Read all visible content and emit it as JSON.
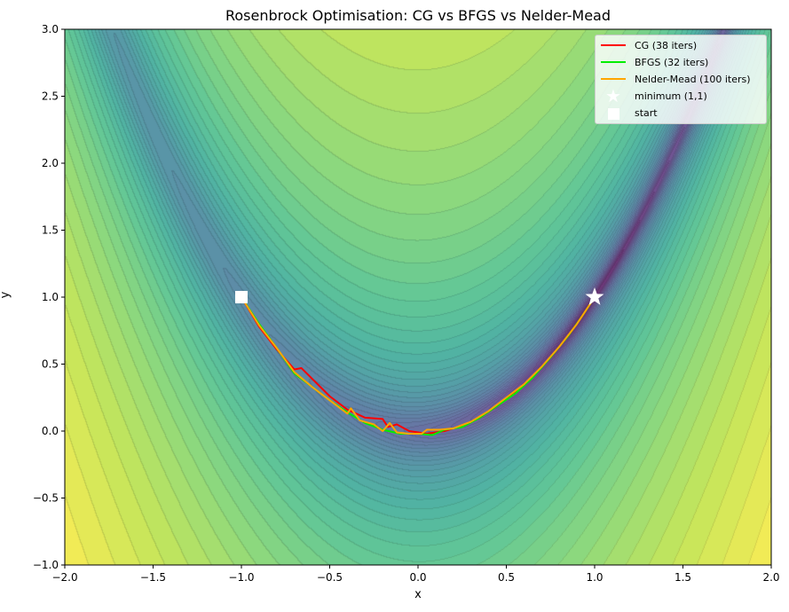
{
  "chart_data": {
    "type": "line",
    "title": "Rosenbrock Optimisation: CG vs BFGS vs Nelder-Mead",
    "xlabel": "x",
    "ylabel": "y",
    "xlim": [
      -2,
      2
    ],
    "ylim": [
      -1,
      3
    ],
    "x_ticks": [
      "−2.0",
      "−1.5",
      "−1.0",
      "−0.5",
      "0.0",
      "0.5",
      "1.0",
      "1.5",
      "2.0"
    ],
    "y_ticks": [
      "−1.0",
      "−0.5",
      "0.0",
      "0.5",
      "1.0",
      "1.5",
      "2.0",
      "2.5",
      "3.0"
    ],
    "background": "filled contour of Rosenbrock function, viridis colormap, log-spaced levels",
    "legend_position": "top-right",
    "series": [
      {
        "name": "CG (38 iters)",
        "color": "#ff0000",
        "points": [
          [
            -1,
            1
          ],
          [
            -0.9,
            0.78
          ],
          [
            -0.8,
            0.61
          ],
          [
            -0.7,
            0.46
          ],
          [
            -0.66,
            0.47
          ],
          [
            -0.5,
            0.26
          ],
          [
            -0.4,
            0.16
          ],
          [
            -0.3,
            0.1
          ],
          [
            -0.2,
            0.09
          ],
          [
            -0.17,
            0.03
          ],
          [
            -0.12,
            0.05
          ],
          [
            -0.05,
            0.0
          ],
          [
            0.05,
            -0.02
          ],
          [
            0.15,
            0.0
          ],
          [
            0.25,
            0.04
          ],
          [
            0.35,
            0.1
          ],
          [
            0.45,
            0.19
          ],
          [
            0.55,
            0.29
          ],
          [
            0.65,
            0.41
          ],
          [
            0.75,
            0.55
          ],
          [
            0.85,
            0.71
          ],
          [
            0.93,
            0.86
          ],
          [
            1,
            1
          ]
        ]
      },
      {
        "name": "BFGS (32 iters)",
        "color": "#00ee00",
        "points": [
          [
            -1,
            1
          ],
          [
            -0.9,
            0.8
          ],
          [
            -0.8,
            0.62
          ],
          [
            -0.7,
            0.43
          ],
          [
            -0.6,
            0.33
          ],
          [
            -0.5,
            0.23
          ],
          [
            -0.4,
            0.14
          ],
          [
            -0.3,
            0.06
          ],
          [
            -0.2,
            0.01
          ],
          [
            -0.1,
            -0.02
          ],
          [
            0.0,
            -0.02
          ],
          [
            0.08,
            -0.03
          ],
          [
            0.15,
            0.01
          ],
          [
            0.25,
            0.03
          ],
          [
            0.35,
            0.1
          ],
          [
            0.45,
            0.19
          ],
          [
            0.55,
            0.28
          ],
          [
            0.65,
            0.4
          ],
          [
            0.75,
            0.55
          ],
          [
            0.85,
            0.71
          ],
          [
            0.93,
            0.86
          ],
          [
            1,
            1
          ]
        ]
      },
      {
        "name": "Nelder-Mead (100 iters)",
        "color": "#ffa500",
        "points": [
          [
            -1,
            1
          ],
          [
            -0.9,
            0.79
          ],
          [
            -0.8,
            0.62
          ],
          [
            -0.7,
            0.44
          ],
          [
            -0.6,
            0.33
          ],
          [
            -0.5,
            0.23
          ],
          [
            -0.4,
            0.13
          ],
          [
            -0.38,
            0.17
          ],
          [
            -0.33,
            0.08
          ],
          [
            -0.25,
            0.05
          ],
          [
            -0.2,
            0.0
          ],
          [
            -0.16,
            0.06
          ],
          [
            -0.12,
            -0.01
          ],
          [
            -0.05,
            -0.02
          ],
          [
            0.02,
            -0.02
          ],
          [
            0.05,
            0.01
          ],
          [
            0.12,
            0.01
          ],
          [
            0.2,
            0.02
          ],
          [
            0.3,
            0.07
          ],
          [
            0.4,
            0.15
          ],
          [
            0.5,
            0.25
          ],
          [
            0.6,
            0.35
          ],
          [
            0.7,
            0.48
          ],
          [
            0.8,
            0.63
          ],
          [
            0.9,
            0.8
          ],
          [
            1,
            1
          ]
        ]
      }
    ],
    "markers": [
      {
        "name": "minimum (1,1)",
        "shape": "star",
        "color": "#ffffff",
        "point": [
          1,
          1
        ]
      },
      {
        "name": "start",
        "shape": "square",
        "color": "#ffffff",
        "point": [
          -1,
          1
        ]
      }
    ]
  }
}
